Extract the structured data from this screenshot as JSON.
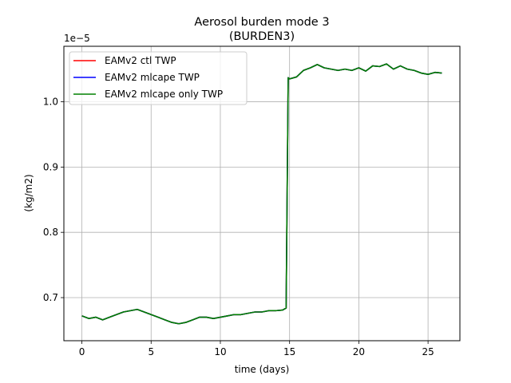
{
  "chart_data": {
    "type": "line",
    "title": "Aerosol burden mode 3",
    "subtitle": "(BURDEN3)",
    "xlabel": "time (days)",
    "ylabel": "(kg/m2)",
    "y_offset_text": "1e−5",
    "xlim": [
      -1.3,
      27.3
    ],
    "ylim": [
      6.34,
      10.85
    ],
    "x_ticks": [
      0,
      5,
      10,
      15,
      20,
      25
    ],
    "x_tick_labels": [
      "0",
      "5",
      "10",
      "15",
      "20",
      "25"
    ],
    "y_ticks": [
      7.0,
      8.0,
      9.0,
      10.0
    ],
    "y_tick_labels": [
      "0.7",
      "0.8",
      "0.9",
      "1.0"
    ],
    "grid": true,
    "legend_position": "upper-left",
    "x": [
      0,
      0.5,
      1,
      1.5,
      2,
      2.5,
      3,
      3.5,
      4,
      4.5,
      5,
      5.5,
      6,
      6.5,
      7,
      7.5,
      8,
      8.5,
      9,
      9.5,
      10,
      10.5,
      11,
      11.5,
      12,
      12.5,
      13,
      13.5,
      14,
      14.5,
      14.75,
      14.9,
      15,
      15.5,
      16,
      16.5,
      17,
      17.5,
      18,
      18.5,
      19,
      19.5,
      20,
      20.5,
      21,
      21.5,
      22,
      22.5,
      23,
      23.5,
      24,
      24.5,
      25,
      25.5,
      26
    ],
    "series": [
      {
        "name": "EAMv2 ctl TWP",
        "color": "#ff0000",
        "values": [
          6.72,
          6.68,
          6.7,
          6.66,
          6.7,
          6.74,
          6.78,
          6.8,
          6.82,
          6.78,
          6.74,
          6.7,
          6.66,
          6.62,
          6.6,
          6.62,
          6.66,
          6.7,
          6.7,
          6.68,
          6.7,
          6.72,
          6.74,
          6.74,
          6.76,
          6.78,
          6.78,
          6.8,
          6.8,
          6.81,
          6.84,
          10.37,
          10.35,
          10.38,
          10.48,
          10.52,
          10.57,
          10.52,
          10.5,
          10.48,
          10.5,
          10.48,
          10.52,
          10.47,
          10.55,
          10.54,
          10.58,
          10.5,
          10.55,
          10.5,
          10.48,
          10.44,
          10.42,
          10.45,
          10.44
        ]
      },
      {
        "name": "EAMv2 mlcape TWP",
        "color": "#0000ff",
        "values": [
          6.72,
          6.68,
          6.7,
          6.66,
          6.7,
          6.74,
          6.78,
          6.8,
          6.82,
          6.78,
          6.74,
          6.7,
          6.66,
          6.62,
          6.6,
          6.62,
          6.66,
          6.7,
          6.7,
          6.68,
          6.7,
          6.72,
          6.74,
          6.74,
          6.76,
          6.78,
          6.78,
          6.8,
          6.8,
          6.81,
          6.84,
          10.37,
          10.35,
          10.38,
          10.48,
          10.52,
          10.57,
          10.52,
          10.5,
          10.48,
          10.5,
          10.48,
          10.52,
          10.47,
          10.55,
          10.54,
          10.58,
          10.5,
          10.55,
          10.5,
          10.48,
          10.44,
          10.42,
          10.45,
          10.44
        ]
      },
      {
        "name": "EAMv2 mlcape only TWP",
        "color": "#008000",
        "values": [
          6.72,
          6.68,
          6.7,
          6.66,
          6.7,
          6.74,
          6.78,
          6.8,
          6.82,
          6.78,
          6.74,
          6.7,
          6.66,
          6.62,
          6.6,
          6.62,
          6.66,
          6.7,
          6.7,
          6.68,
          6.7,
          6.72,
          6.74,
          6.74,
          6.76,
          6.78,
          6.78,
          6.8,
          6.8,
          6.81,
          6.84,
          10.37,
          10.35,
          10.38,
          10.48,
          10.52,
          10.57,
          10.52,
          10.5,
          10.48,
          10.5,
          10.48,
          10.52,
          10.47,
          10.55,
          10.54,
          10.58,
          10.5,
          10.55,
          10.5,
          10.48,
          10.44,
          10.42,
          10.45,
          10.44
        ]
      }
    ]
  }
}
